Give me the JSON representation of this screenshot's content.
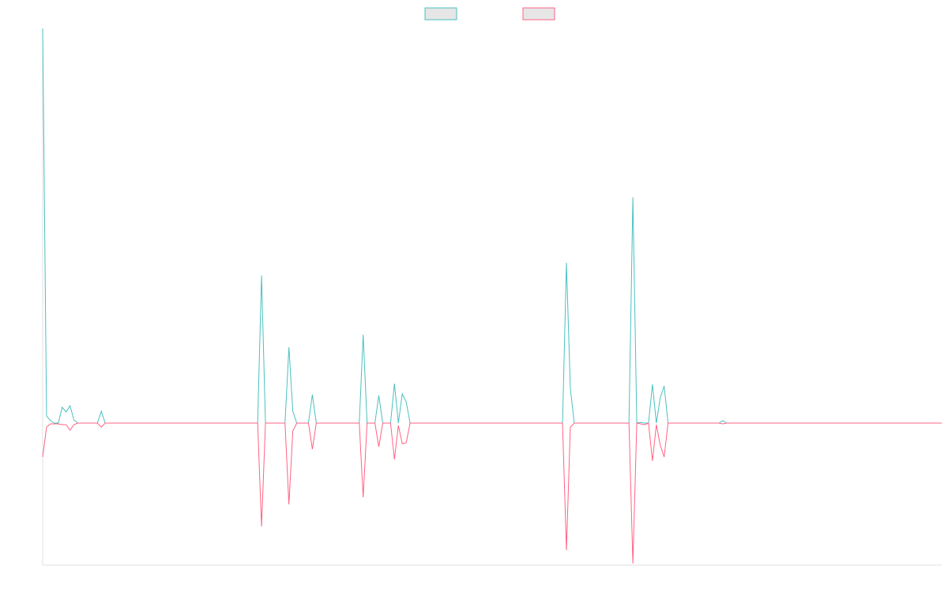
{
  "chart_data": {
    "type": "line",
    "categories": [
      null,
      null,
      null,
      null,
      null,
      null,
      null,
      null,
      null,
      null,
      null,
      null,
      null,
      null,
      null,
      null,
      null,
      null,
      null,
      null,
      null,
      null,
      null,
      null,
      null,
      null,
      null,
      null,
      null,
      null,
      null,
      null,
      null,
      null,
      null,
      null,
      null,
      null,
      null,
      null,
      null,
      null,
      null,
      null,
      null,
      null,
      null,
      null,
      null,
      null,
      null,
      null,
      null,
      null,
      null,
      null,
      null,
      null,
      null,
      null,
      null,
      null,
      null,
      null,
      null,
      null,
      null,
      null,
      null,
      null,
      null,
      null,
      null,
      null,
      null,
      null,
      null,
      null,
      null,
      null,
      null,
      null,
      null,
      null,
      null,
      null,
      null,
      null,
      null,
      null,
      null,
      null,
      null,
      null,
      null,
      null,
      null,
      null,
      null,
      null,
      null,
      null,
      null,
      null,
      null,
      null,
      null,
      null,
      null,
      null,
      null,
      null,
      null,
      null,
      null,
      null,
      null,
      null,
      null,
      null,
      null,
      null,
      null,
      null,
      null,
      null,
      null,
      null,
      null,
      null,
      null,
      null,
      null,
      null,
      null,
      null,
      null,
      null,
      null,
      null,
      null,
      null,
      null,
      null,
      null,
      null,
      null,
      null,
      null,
      null,
      null,
      null,
      null,
      null,
      null,
      null,
      null,
      null,
      null,
      null,
      null,
      null,
      null,
      null,
      null,
      null,
      null,
      null,
      null,
      null,
      null,
      null,
      null,
      null,
      null,
      null,
      null,
      null,
      null,
      null,
      null,
      null,
      null,
      null,
      null,
      null,
      null,
      null,
      null,
      null,
      null,
      null,
      null,
      null,
      null,
      null,
      null,
      null,
      null,
      null,
      null,
      null,
      null,
      null,
      null,
      null,
      null,
      null,
      null,
      null,
      null,
      null,
      null,
      null,
      null,
      null,
      null,
      null,
      null,
      null,
      null,
      null,
      null,
      null,
      null,
      null,
      null,
      null,
      null,
      null,
      null
    ],
    "series": [
      {
        "color": "#4bc0c0",
        "values": [
          500,
          9,
          3,
          0,
          0,
          20,
          14,
          22,
          4,
          0,
          0,
          0,
          0,
          0,
          0,
          15,
          0,
          0,
          0,
          0,
          0,
          0,
          0,
          0,
          0,
          0,
          0,
          0,
          0,
          0,
          0,
          0,
          0,
          0,
          0,
          0,
          0,
          0,
          0,
          0,
          0,
          0,
          0,
          0,
          0,
          0,
          0,
          0,
          0,
          0,
          0,
          0,
          0,
          0,
          0,
          0,
          187,
          0,
          0,
          0,
          0,
          0,
          0,
          96,
          15,
          0,
          0,
          0,
          0,
          36,
          0,
          0,
          0,
          0,
          0,
          0,
          0,
          0,
          0,
          0,
          0,
          0,
          112,
          0,
          0,
          0,
          35,
          0,
          0,
          0,
          50,
          0,
          37,
          27,
          0,
          0,
          0,
          0,
          0,
          0,
          0,
          0,
          0,
          0,
          0,
          0,
          0,
          0,
          0,
          0,
          0,
          0,
          0,
          0,
          0,
          0,
          0,
          0,
          0,
          0,
          0,
          0,
          0,
          0,
          0,
          0,
          0,
          0,
          0,
          0,
          0,
          0,
          0,
          0,
          203,
          44,
          0,
          0,
          0,
          0,
          0,
          0,
          0,
          0,
          0,
          0,
          0,
          0,
          0,
          0,
          0,
          286,
          0,
          1,
          0,
          0,
          49,
          0,
          32,
          47,
          0,
          0,
          0,
          0,
          0,
          0,
          0,
          0,
          0,
          0,
          0,
          0,
          0,
          0,
          3,
          0,
          0,
          0,
          0,
          0,
          0,
          0,
          0,
          0,
          0,
          0,
          0,
          0,
          0,
          0,
          0,
          0,
          0,
          0,
          0,
          0,
          0,
          0,
          0,
          0,
          0,
          0,
          0,
          0,
          0,
          0,
          0,
          0,
          0,
          0,
          0,
          0,
          0,
          0,
          0,
          0,
          0,
          0,
          0,
          0,
          0,
          0,
          0,
          0,
          0,
          0,
          0,
          0,
          0,
          0,
          0
        ]
      },
      {
        "color": "#ff6384",
        "values": [
          -43,
          -5,
          -1,
          -1,
          -1,
          -2,
          -2,
          -9,
          -2,
          0,
          0,
          0,
          0,
          0,
          0,
          -5,
          0,
          0,
          0,
          0,
          0,
          0,
          0,
          0,
          0,
          0,
          0,
          0,
          0,
          0,
          0,
          0,
          0,
          0,
          0,
          0,
          0,
          0,
          0,
          0,
          0,
          0,
          0,
          0,
          0,
          0,
          0,
          0,
          0,
          0,
          0,
          0,
          0,
          0,
          0,
          0,
          -131,
          0,
          0,
          0,
          0,
          0,
          0,
          -103,
          -10,
          0,
          0,
          0,
          0,
          -33,
          0,
          0,
          0,
          0,
          0,
          0,
          0,
          0,
          0,
          0,
          0,
          0,
          -94,
          0,
          0,
          0,
          -30,
          0,
          0,
          0,
          -46,
          -3,
          -26,
          -25,
          0,
          0,
          0,
          0,
          0,
          0,
          0,
          0,
          0,
          0,
          0,
          0,
          0,
          0,
          0,
          0,
          0,
          0,
          0,
          0,
          0,
          0,
          0,
          0,
          0,
          0,
          0,
          0,
          0,
          0,
          0,
          0,
          0,
          0,
          0,
          0,
          0,
          0,
          0,
          0,
          -161,
          -5,
          0,
          0,
          0,
          0,
          0,
          0,
          0,
          0,
          0,
          0,
          0,
          0,
          0,
          0,
          0,
          -178,
          0,
          -1,
          -2,
          0,
          -48,
          -2,
          -28,
          -43,
          0,
          0,
          0,
          0,
          0,
          0,
          0,
          0,
          0,
          0,
          0,
          0,
          0,
          0,
          -1,
          0,
          0,
          0,
          0,
          0,
          0,
          0,
          0,
          0,
          0,
          0,
          0,
          0,
          0,
          0,
          0,
          0,
          0,
          0,
          0,
          0,
          0,
          0,
          0,
          0,
          0,
          0,
          0,
          0,
          0,
          0,
          0,
          0,
          0,
          0,
          0,
          0,
          0,
          0,
          0,
          0,
          0,
          0,
          0,
          0,
          0,
          0,
          0,
          0,
          0,
          0,
          0,
          0,
          0,
          0,
          0
        ]
      }
    ],
    "ylim": [
      -180,
      500
    ],
    "legend": "top"
  }
}
